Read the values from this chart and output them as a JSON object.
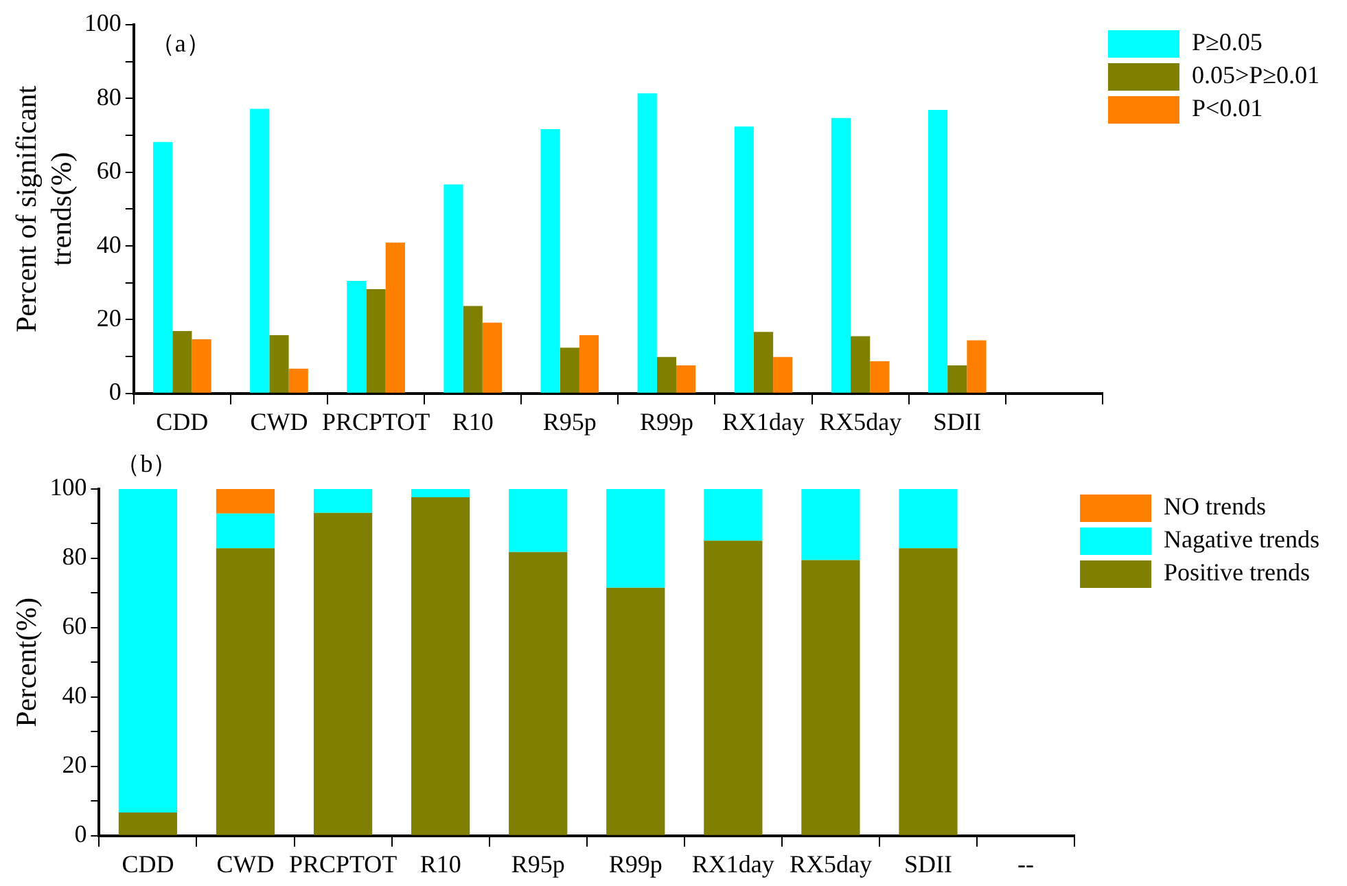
{
  "chart_data": [
    {
      "type": "bar",
      "title": "（a）",
      "ylabel": "Percent of significant\ntrends(%)",
      "categories": [
        "CDD",
        "CWD",
        "PRCPTOT",
        "R10",
        "R95p",
        "R99p",
        "RX1day",
        "RX5day",
        "SDII",
        null
      ],
      "series": [
        {
          "name": "P≥0.05",
          "color": "#00ffff",
          "values": [
            68.2,
            77.2,
            30.5,
            56.7,
            71.7,
            81.4,
            72.4,
            74.7,
            76.9,
            null
          ]
        },
        {
          "name": "0.05>P≥0.01",
          "color": "#808000",
          "values": [
            16.9,
            15.8,
            28.3,
            23.7,
            12.4,
            9.9,
            16.7,
            15.5,
            7.6,
            null
          ]
        },
        {
          "name": "P<0.01",
          "color": "#ff8000",
          "values": [
            14.7,
            6.7,
            40.9,
            19.2,
            15.8,
            7.6,
            9.9,
            8.7,
            14.4,
            null
          ]
        }
      ],
      "ylim": [
        0,
        100
      ],
      "yticks": [
        0,
        {
          "value": 10,
          "label": null
        },
        20,
        {
          "value": 30,
          "label": null
        },
        40,
        {
          "value": 50,
          "label": null
        },
        60,
        {
          "value": 70,
          "label": null
        },
        80,
        {
          "value": 90,
          "label": null
        },
        100
      ],
      "grid": false,
      "legend": "right"
    },
    {
      "type": "bar",
      "title": "（b）",
      "ylabel": "Percent(%)",
      "stacked": true,
      "categories": [
        "CDD",
        "CWD",
        "PRCPTOT",
        "R10",
        "R95p",
        "R99p",
        "RX1day",
        "RX5day",
        "SDII",
        "--"
      ],
      "series": [
        {
          "name": "Positive trends",
          "color": "#808000",
          "values": [
            6.7,
            82.9,
            93.1,
            97.6,
            81.8,
            71.5,
            85.1,
            79.5,
            82.9,
            null
          ]
        },
        {
          "name": "Nagative trends",
          "color": "#00ffff",
          "values": [
            93.3,
            10.0,
            6.9,
            2.4,
            18.2,
            28.5,
            14.9,
            20.5,
            17.1,
            null
          ]
        },
        {
          "name": "NO trends",
          "color": "#ff8000",
          "values": [
            0,
            7.1,
            0,
            0,
            0,
            0,
            0,
            0,
            0,
            null
          ]
        }
      ],
      "ylim": [
        0,
        100
      ],
      "yticks": [
        0,
        {
          "value": 10,
          "label": null
        },
        20,
        {
          "value": 30,
          "label": null
        },
        40,
        {
          "value": 50,
          "label": null
        },
        60,
        {
          "value": 70,
          "label": null
        },
        80,
        {
          "value": 90,
          "label": null
        },
        100
      ],
      "grid": false,
      "legend": "right"
    }
  ]
}
